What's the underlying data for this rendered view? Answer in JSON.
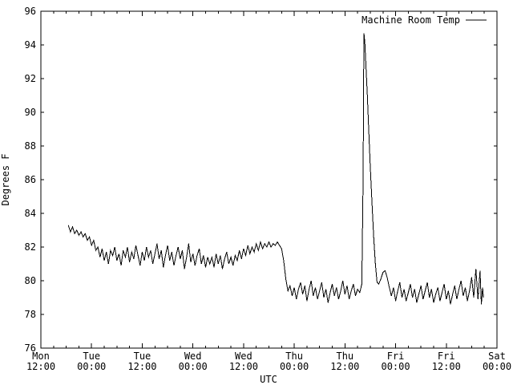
{
  "colors": {
    "background": "#ffffff",
    "foreground": "#000000"
  },
  "chart_data": {
    "type": "line",
    "title": "",
    "xlabel": "UTC",
    "ylabel": "Degrees F",
    "legend_position": "top-right-inside",
    "grid": false,
    "ylim": [
      76,
      96
    ],
    "y_ticks": [
      76,
      78,
      80,
      82,
      84,
      86,
      88,
      90,
      92,
      94,
      96
    ],
    "xlim_hours": [
      0,
      108
    ],
    "x_minor_tick_hours": 3,
    "x_ticks": [
      {
        "hour": 0,
        "day": "Mon",
        "time": "12:00"
      },
      {
        "hour": 12,
        "day": "Tue",
        "time": "00:00"
      },
      {
        "hour": 24,
        "day": "Tue",
        "time": "12:00"
      },
      {
        "hour": 36,
        "day": "Wed",
        "time": "00:00"
      },
      {
        "hour": 48,
        "day": "Wed",
        "time": "12:00"
      },
      {
        "hour": 60,
        "day": "Thu",
        "time": "00:00"
      },
      {
        "hour": 72,
        "day": "Thu",
        "time": "12:00"
      },
      {
        "hour": 84,
        "day": "Fri",
        "time": "00:00"
      },
      {
        "hour": 96,
        "day": "Fri",
        "time": "12:00"
      },
      {
        "hour": 108,
        "day": "Sat",
        "time": "00:00"
      }
    ],
    "series": [
      {
        "name": "Machine Room Temp",
        "color": "#000000",
        "x_unit": "hours_after_Mon_12:00_UTC",
        "y_unit": "Degrees F",
        "points": [
          [
            6.5,
            83.3
          ],
          [
            7,
            82.9
          ],
          [
            7.5,
            83.2
          ],
          [
            8,
            82.8
          ],
          [
            8.5,
            83.0
          ],
          [
            9,
            82.7
          ],
          [
            9.5,
            82.9
          ],
          [
            10,
            82.6
          ],
          [
            10.5,
            82.8
          ],
          [
            11,
            82.4
          ],
          [
            11.5,
            82.6
          ],
          [
            12,
            82.1
          ],
          [
            12.5,
            82.4
          ],
          [
            13,
            81.8
          ],
          [
            13.5,
            82.0
          ],
          [
            14,
            81.4
          ],
          [
            14.5,
            81.9
          ],
          [
            15,
            81.2
          ],
          [
            15.5,
            81.7
          ],
          [
            16,
            81.0
          ],
          [
            16.5,
            81.8
          ],
          [
            17,
            81.5
          ],
          [
            17.5,
            82.0
          ],
          [
            18,
            81.2
          ],
          [
            18.5,
            81.6
          ],
          [
            19,
            80.9
          ],
          [
            19.5,
            81.8
          ],
          [
            20,
            81.4
          ],
          [
            20.5,
            82.0
          ],
          [
            21,
            81.1
          ],
          [
            21.5,
            81.7
          ],
          [
            22,
            81.3
          ],
          [
            22.5,
            82.1
          ],
          [
            23,
            81.5
          ],
          [
            23.5,
            80.9
          ],
          [
            24,
            81.7
          ],
          [
            24.5,
            81.2
          ],
          [
            25,
            82.0
          ],
          [
            25.5,
            81.4
          ],
          [
            26,
            81.8
          ],
          [
            26.5,
            81.0
          ],
          [
            27,
            81.6
          ],
          [
            27.5,
            82.2
          ],
          [
            28,
            81.3
          ],
          [
            28.5,
            81.8
          ],
          [
            29,
            80.8
          ],
          [
            29.5,
            81.5
          ],
          [
            30,
            82.1
          ],
          [
            30.5,
            81.2
          ],
          [
            31,
            81.7
          ],
          [
            31.5,
            80.9
          ],
          [
            32,
            81.5
          ],
          [
            32.5,
            82.0
          ],
          [
            33,
            81.3
          ],
          [
            33.5,
            81.8
          ],
          [
            34,
            80.7
          ],
          [
            34.5,
            81.4
          ],
          [
            35,
            82.2
          ],
          [
            35.5,
            81.1
          ],
          [
            36,
            81.6
          ],
          [
            36.5,
            80.9
          ],
          [
            37,
            81.5
          ],
          [
            37.5,
            81.9
          ],
          [
            38,
            81.0
          ],
          [
            38.5,
            81.5
          ],
          [
            39,
            80.8
          ],
          [
            39.5,
            81.4
          ],
          [
            40,
            81.0
          ],
          [
            40.5,
            81.4
          ],
          [
            41,
            80.8
          ],
          [
            41.5,
            81.6
          ],
          [
            42,
            81.0
          ],
          [
            42.5,
            81.5
          ],
          [
            43,
            80.7
          ],
          [
            43.5,
            81.3
          ],
          [
            44,
            81.7
          ],
          [
            44.5,
            81.0
          ],
          [
            45,
            81.4
          ],
          [
            45.5,
            80.9
          ],
          [
            46,
            81.5
          ],
          [
            46.5,
            81.2
          ],
          [
            47,
            81.8
          ],
          [
            47.5,
            81.3
          ],
          [
            48,
            81.9
          ],
          [
            48.5,
            81.5
          ],
          [
            49,
            82.1
          ],
          [
            49.5,
            81.6
          ],
          [
            50,
            82.0
          ],
          [
            50.5,
            81.7
          ],
          [
            51,
            82.2
          ],
          [
            51.5,
            81.8
          ],
          [
            52,
            82.3
          ],
          [
            52.5,
            81.9
          ],
          [
            53,
            82.2
          ],
          [
            53.5,
            82.0
          ],
          [
            54,
            82.3
          ],
          [
            54.5,
            82.0
          ],
          [
            55,
            82.2
          ],
          [
            55.5,
            82.1
          ],
          [
            56,
            82.3
          ],
          [
            56.5,
            82.1
          ],
          [
            57,
            81.9
          ],
          [
            57.5,
            81.2
          ],
          [
            58,
            80.1
          ],
          [
            58.5,
            79.4
          ],
          [
            59,
            79.7
          ],
          [
            59.5,
            79.1
          ],
          [
            60,
            79.6
          ],
          [
            60.5,
            78.9
          ],
          [
            61,
            79.5
          ],
          [
            61.5,
            79.9
          ],
          [
            62,
            79.2
          ],
          [
            62.5,
            79.7
          ],
          [
            63,
            78.8
          ],
          [
            63.5,
            79.5
          ],
          [
            64,
            80.0
          ],
          [
            64.5,
            79.1
          ],
          [
            65,
            79.6
          ],
          [
            65.5,
            78.9
          ],
          [
            66,
            79.4
          ],
          [
            66.5,
            79.9
          ],
          [
            67,
            79.0
          ],
          [
            67.5,
            79.5
          ],
          [
            68,
            78.7
          ],
          [
            68.5,
            79.3
          ],
          [
            69,
            79.8
          ],
          [
            69.5,
            79.1
          ],
          [
            70,
            79.6
          ],
          [
            70.5,
            78.9
          ],
          [
            71,
            79.4
          ],
          [
            71.5,
            80.0
          ],
          [
            72,
            79.2
          ],
          [
            72.5,
            79.7
          ],
          [
            73,
            78.9
          ],
          [
            73.5,
            79.4
          ],
          [
            74,
            79.8
          ],
          [
            74.5,
            79.1
          ],
          [
            75,
            79.5
          ],
          [
            75.5,
            79.3
          ],
          [
            76,
            79.8
          ],
          [
            76.3,
            86.0
          ],
          [
            76.5,
            94.7
          ],
          [
            76.7,
            94.2
          ],
          [
            77,
            92.6
          ],
          [
            77.3,
            91.0
          ],
          [
            77.6,
            89.2
          ],
          [
            78,
            86.8
          ],
          [
            78.4,
            84.6
          ],
          [
            78.8,
            82.6
          ],
          [
            79.2,
            81.0
          ],
          [
            79.6,
            79.9
          ],
          [
            80,
            79.8
          ],
          [
            80.5,
            80.1
          ],
          [
            81,
            80.5
          ],
          [
            81.5,
            80.6
          ],
          [
            82,
            80.2
          ],
          [
            82.5,
            79.6
          ],
          [
            83,
            79.1
          ],
          [
            83.5,
            79.6
          ],
          [
            84,
            78.8
          ],
          [
            84.5,
            79.4
          ],
          [
            85,
            79.9
          ],
          [
            85.5,
            79.0
          ],
          [
            86,
            79.5
          ],
          [
            86.5,
            78.8
          ],
          [
            87,
            79.3
          ],
          [
            87.5,
            79.8
          ],
          [
            88,
            79.0
          ],
          [
            88.5,
            79.5
          ],
          [
            89,
            78.7
          ],
          [
            89.5,
            79.2
          ],
          [
            90,
            79.7
          ],
          [
            90.5,
            78.9
          ],
          [
            91,
            79.4
          ],
          [
            91.5,
            79.9
          ],
          [
            92,
            79.0
          ],
          [
            92.5,
            79.5
          ],
          [
            93,
            78.7
          ],
          [
            93.5,
            79.2
          ],
          [
            94,
            79.6
          ],
          [
            94.5,
            78.8
          ],
          [
            95,
            79.3
          ],
          [
            95.5,
            79.8
          ],
          [
            96,
            78.9
          ],
          [
            96.5,
            79.4
          ],
          [
            97,
            78.6
          ],
          [
            97.5,
            79.2
          ],
          [
            98,
            79.7
          ],
          [
            98.5,
            78.9
          ],
          [
            99,
            79.5
          ],
          [
            99.5,
            80.0
          ],
          [
            100,
            79.1
          ],
          [
            100.5,
            79.6
          ],
          [
            101,
            78.8
          ],
          [
            101.5,
            79.4
          ],
          [
            102,
            80.2
          ],
          [
            102.5,
            79.0
          ],
          [
            103,
            80.7
          ],
          [
            103.5,
            78.9
          ],
          [
            104,
            80.6
          ],
          [
            104.3,
            78.6
          ],
          [
            104.6,
            79.6
          ],
          [
            104.8,
            79.0
          ]
        ]
      }
    ]
  }
}
